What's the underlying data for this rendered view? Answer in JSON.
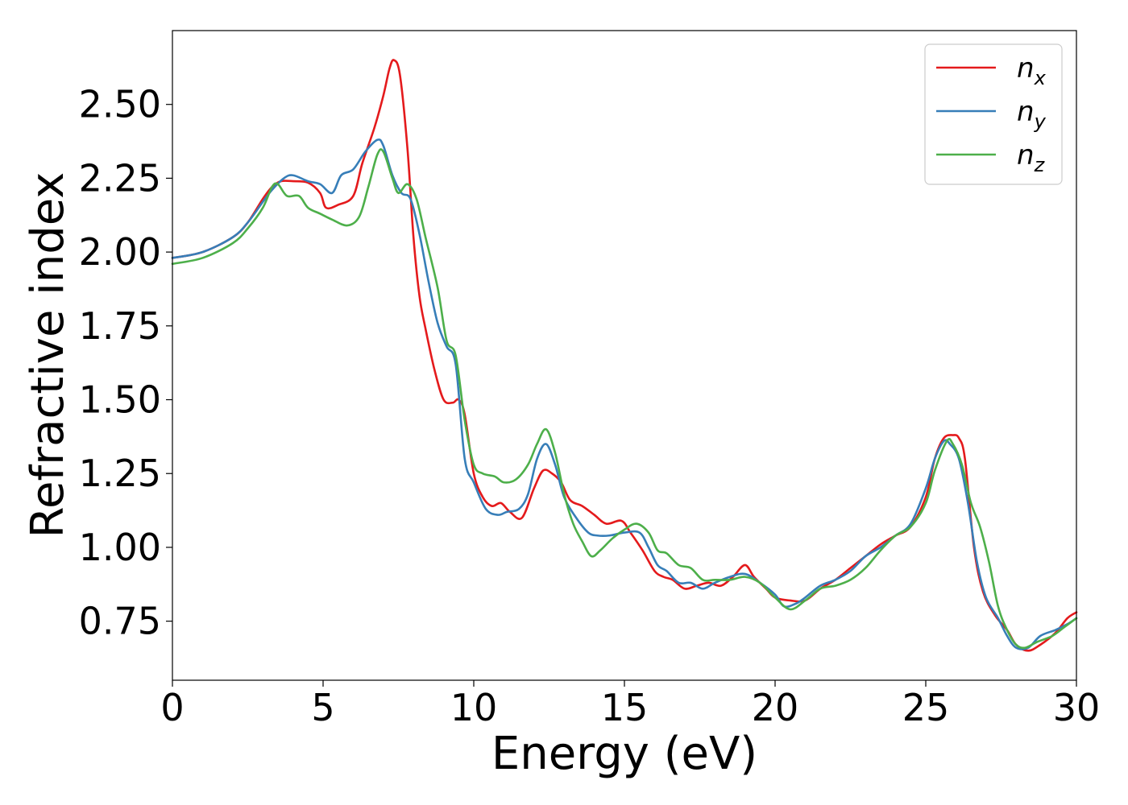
{
  "chart_data": {
    "type": "line",
    "title": "",
    "xlabel": "Energy (eV)",
    "ylabel": "Refractive index",
    "xlim": [
      0,
      30
    ],
    "ylim": [
      0.55,
      2.75
    ],
    "xticks": [
      0,
      5,
      10,
      15,
      20,
      25,
      30
    ],
    "yticks": [
      0.75,
      1.0,
      1.25,
      1.5,
      1.75,
      2.0,
      2.25,
      2.5
    ],
    "xtick_labels": [
      "0",
      "5",
      "10",
      "15",
      "20",
      "25",
      "30"
    ],
    "ytick_labels": [
      "0.75",
      "1.00",
      "1.25",
      "1.50",
      "1.75",
      "2.00",
      "2.25",
      "2.50"
    ],
    "grid": false,
    "legend_position": "top-right",
    "series": [
      {
        "name": "n_x",
        "label_base": "n",
        "label_sub": "x",
        "color": "#e41a1c",
        "points": [
          [
            0,
            1.98
          ],
          [
            1,
            2.0
          ],
          [
            2,
            2.05
          ],
          [
            2.5,
            2.1
          ],
          [
            3,
            2.18
          ],
          [
            3.3,
            2.22
          ],
          [
            3.6,
            2.24
          ],
          [
            4,
            2.24
          ],
          [
            4.5,
            2.235
          ],
          [
            4.9,
            2.2
          ],
          [
            5.1,
            2.15
          ],
          [
            5.5,
            2.16
          ],
          [
            6,
            2.19
          ],
          [
            6.3,
            2.3
          ],
          [
            6.7,
            2.42
          ],
          [
            7,
            2.53
          ],
          [
            7.2,
            2.62
          ],
          [
            7.35,
            2.65
          ],
          [
            7.55,
            2.6
          ],
          [
            7.8,
            2.35
          ],
          [
            8,
            2.05
          ],
          [
            8.2,
            1.85
          ],
          [
            8.4,
            1.74
          ],
          [
            8.7,
            1.6
          ],
          [
            9,
            1.5
          ],
          [
            9.3,
            1.49
          ],
          [
            9.5,
            1.5
          ],
          [
            9.7,
            1.45
          ],
          [
            10,
            1.25
          ],
          [
            10.3,
            1.17
          ],
          [
            10.6,
            1.14
          ],
          [
            10.9,
            1.15
          ],
          [
            11.2,
            1.12
          ],
          [
            11.6,
            1.1
          ],
          [
            12,
            1.2
          ],
          [
            12.3,
            1.26
          ],
          [
            12.6,
            1.25
          ],
          [
            12.9,
            1.22
          ],
          [
            13.2,
            1.16
          ],
          [
            13.6,
            1.14
          ],
          [
            14,
            1.11
          ],
          [
            14.4,
            1.08
          ],
          [
            14.9,
            1.09
          ],
          [
            15.2,
            1.05
          ],
          [
            15.6,
            0.99
          ],
          [
            16,
            0.92
          ],
          [
            16.3,
            0.9
          ],
          [
            16.6,
            0.89
          ],
          [
            17,
            0.86
          ],
          [
            17.4,
            0.87
          ],
          [
            17.8,
            0.88
          ],
          [
            18.2,
            0.87
          ],
          [
            18.6,
            0.9
          ],
          [
            19,
            0.94
          ],
          [
            19.3,
            0.9
          ],
          [
            19.7,
            0.86
          ],
          [
            20,
            0.83
          ],
          [
            20.5,
            0.82
          ],
          [
            21,
            0.82
          ],
          [
            21.5,
            0.86
          ],
          [
            22,
            0.89
          ],
          [
            22.5,
            0.93
          ],
          [
            23,
            0.97
          ],
          [
            23.5,
            1.01
          ],
          [
            24,
            1.04
          ],
          [
            24.5,
            1.07
          ],
          [
            25,
            1.17
          ],
          [
            25.3,
            1.3
          ],
          [
            25.6,
            1.37
          ],
          [
            25.9,
            1.38
          ],
          [
            26.1,
            1.37
          ],
          [
            26.3,
            1.3
          ],
          [
            26.6,
            1.0
          ],
          [
            26.9,
            0.85
          ],
          [
            27.3,
            0.77
          ],
          [
            27.7,
            0.72
          ],
          [
            28,
            0.67
          ],
          [
            28.4,
            0.65
          ],
          [
            28.8,
            0.67
          ],
          [
            29.3,
            0.71
          ],
          [
            29.7,
            0.76
          ],
          [
            30,
            0.78
          ]
        ]
      },
      {
        "name": "n_y",
        "label_base": "n",
        "label_sub": "y",
        "color": "#377eb8",
        "points": [
          [
            0,
            1.98
          ],
          [
            1,
            2.0
          ],
          [
            2,
            2.05
          ],
          [
            2.5,
            2.1
          ],
          [
            3,
            2.17
          ],
          [
            3.3,
            2.21
          ],
          [
            3.7,
            2.25
          ],
          [
            4,
            2.26
          ],
          [
            4.5,
            2.24
          ],
          [
            4.9,
            2.23
          ],
          [
            5.3,
            2.2
          ],
          [
            5.6,
            2.26
          ],
          [
            6,
            2.28
          ],
          [
            6.4,
            2.34
          ],
          [
            6.8,
            2.38
          ],
          [
            7,
            2.36
          ],
          [
            7.3,
            2.26
          ],
          [
            7.6,
            2.2
          ],
          [
            7.9,
            2.18
          ],
          [
            8.2,
            2.06
          ],
          [
            8.5,
            1.9
          ],
          [
            8.8,
            1.76
          ],
          [
            9.1,
            1.68
          ],
          [
            9.4,
            1.62
          ],
          [
            9.7,
            1.3
          ],
          [
            10,
            1.22
          ],
          [
            10.4,
            1.13
          ],
          [
            10.8,
            1.11
          ],
          [
            11.1,
            1.12
          ],
          [
            11.5,
            1.13
          ],
          [
            11.8,
            1.18
          ],
          [
            12.1,
            1.3
          ],
          [
            12.4,
            1.35
          ],
          [
            12.7,
            1.28
          ],
          [
            13,
            1.17
          ],
          [
            13.4,
            1.1
          ],
          [
            13.8,
            1.05
          ],
          [
            14.1,
            1.04
          ],
          [
            14.5,
            1.04
          ],
          [
            15,
            1.05
          ],
          [
            15.5,
            1.05
          ],
          [
            15.8,
            1.0
          ],
          [
            16.1,
            0.94
          ],
          [
            16.4,
            0.92
          ],
          [
            16.8,
            0.88
          ],
          [
            17.2,
            0.88
          ],
          [
            17.6,
            0.86
          ],
          [
            18,
            0.88
          ],
          [
            18.5,
            0.9
          ],
          [
            19,
            0.91
          ],
          [
            19.5,
            0.88
          ],
          [
            20,
            0.84
          ],
          [
            20.3,
            0.8
          ],
          [
            20.7,
            0.81
          ],
          [
            21,
            0.83
          ],
          [
            21.5,
            0.87
          ],
          [
            22,
            0.89
          ],
          [
            22.5,
            0.92
          ],
          [
            23,
            0.97
          ],
          [
            23.5,
            1.0
          ],
          [
            24,
            1.04
          ],
          [
            24.5,
            1.08
          ],
          [
            25,
            1.2
          ],
          [
            25.3,
            1.3
          ],
          [
            25.6,
            1.36
          ],
          [
            25.8,
            1.35
          ],
          [
            26.1,
            1.3
          ],
          [
            26.4,
            1.15
          ],
          [
            26.7,
            0.95
          ],
          [
            27,
            0.83
          ],
          [
            27.4,
            0.76
          ],
          [
            27.7,
            0.7
          ],
          [
            28,
            0.66
          ],
          [
            28.4,
            0.66
          ],
          [
            28.8,
            0.7
          ],
          [
            29.3,
            0.72
          ],
          [
            29.7,
            0.74
          ],
          [
            30,
            0.76
          ]
        ]
      },
      {
        "name": "n_z",
        "label_base": "n",
        "label_sub": "z",
        "color": "#4daf4a",
        "points": [
          [
            0,
            1.96
          ],
          [
            1,
            1.98
          ],
          [
            2,
            2.03
          ],
          [
            2.5,
            2.08
          ],
          [
            3,
            2.15
          ],
          [
            3.3,
            2.22
          ],
          [
            3.5,
            2.23
          ],
          [
            3.8,
            2.19
          ],
          [
            4.2,
            2.19
          ],
          [
            4.5,
            2.15
          ],
          [
            4.9,
            2.13
          ],
          [
            5.3,
            2.11
          ],
          [
            5.8,
            2.09
          ],
          [
            6.2,
            2.12
          ],
          [
            6.5,
            2.22
          ],
          [
            6.8,
            2.33
          ],
          [
            7,
            2.34
          ],
          [
            7.3,
            2.25
          ],
          [
            7.5,
            2.2
          ],
          [
            7.8,
            2.23
          ],
          [
            8.1,
            2.18
          ],
          [
            8.4,
            2.05
          ],
          [
            8.8,
            1.88
          ],
          [
            9.1,
            1.7
          ],
          [
            9.4,
            1.65
          ],
          [
            9.7,
            1.43
          ],
          [
            10,
            1.28
          ],
          [
            10.3,
            1.25
          ],
          [
            10.7,
            1.24
          ],
          [
            11,
            1.22
          ],
          [
            11.4,
            1.23
          ],
          [
            11.8,
            1.28
          ],
          [
            12.1,
            1.35
          ],
          [
            12.4,
            1.4
          ],
          [
            12.7,
            1.32
          ],
          [
            13,
            1.18
          ],
          [
            13.3,
            1.08
          ],
          [
            13.6,
            1.02
          ],
          [
            13.9,
            0.97
          ],
          [
            14.2,
            0.99
          ],
          [
            14.6,
            1.03
          ],
          [
            15,
            1.06
          ],
          [
            15.4,
            1.08
          ],
          [
            15.8,
            1.05
          ],
          [
            16.1,
            0.99
          ],
          [
            16.4,
            0.98
          ],
          [
            16.8,
            0.94
          ],
          [
            17.2,
            0.93
          ],
          [
            17.6,
            0.89
          ],
          [
            18,
            0.89
          ],
          [
            18.5,
            0.89
          ],
          [
            19,
            0.9
          ],
          [
            19.5,
            0.88
          ],
          [
            20,
            0.83
          ],
          [
            20.5,
            0.79
          ],
          [
            21,
            0.82
          ],
          [
            21.5,
            0.86
          ],
          [
            22,
            0.87
          ],
          [
            22.5,
            0.89
          ],
          [
            23,
            0.93
          ],
          [
            23.5,
            0.99
          ],
          [
            24,
            1.04
          ],
          [
            24.5,
            1.07
          ],
          [
            25,
            1.15
          ],
          [
            25.3,
            1.26
          ],
          [
            25.7,
            1.36
          ],
          [
            25.9,
            1.35
          ],
          [
            26.2,
            1.28
          ],
          [
            26.5,
            1.15
          ],
          [
            26.8,
            1.07
          ],
          [
            27.1,
            0.95
          ],
          [
            27.4,
            0.8
          ],
          [
            27.7,
            0.72
          ],
          [
            28,
            0.67
          ],
          [
            28.3,
            0.66
          ],
          [
            28.7,
            0.68
          ],
          [
            29.2,
            0.7
          ],
          [
            29.6,
            0.73
          ],
          [
            30,
            0.76
          ]
        ]
      }
    ]
  }
}
